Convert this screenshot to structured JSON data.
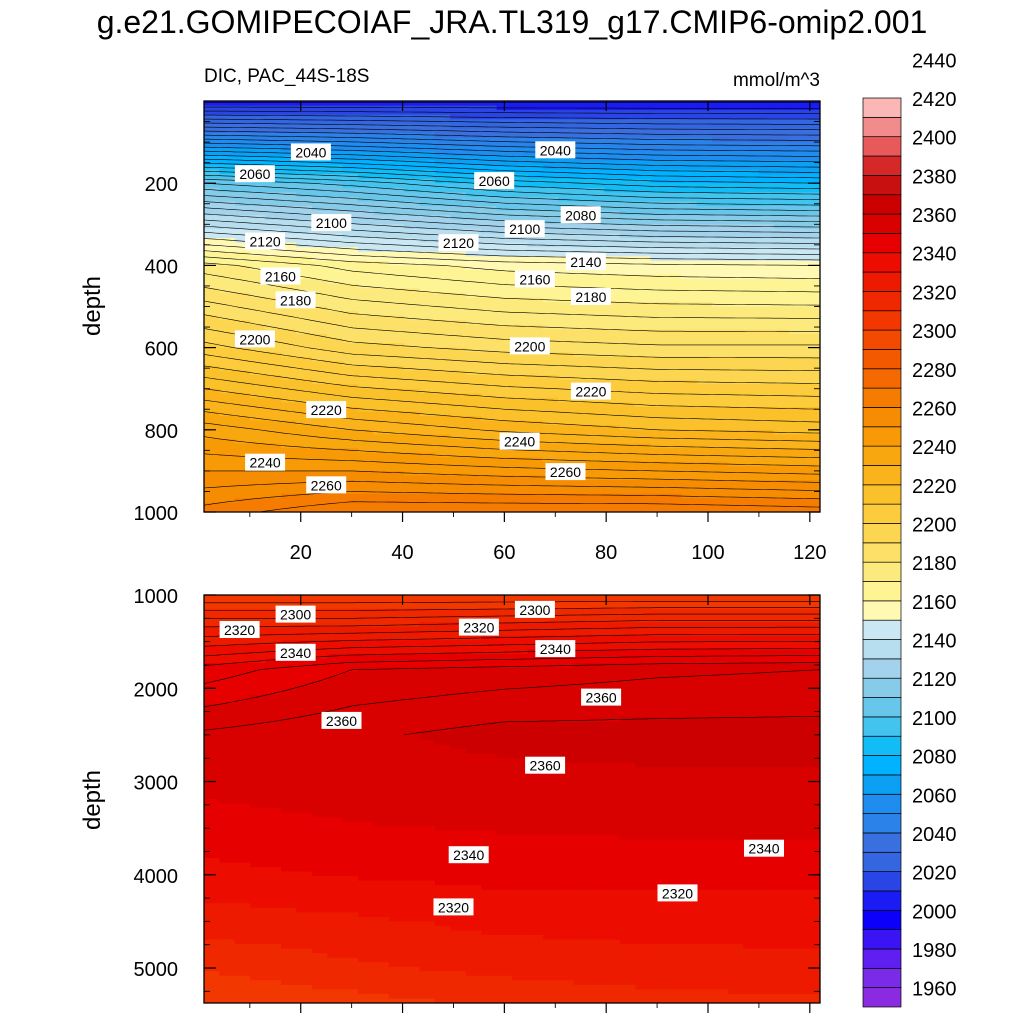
{
  "title": "g.e21.GOMIPECOIAF_JRA.TL319_g17.CMIP6-omip2.001",
  "chart_data": [
    {
      "type": "heatmap",
      "panel": "upper",
      "title_left": "DIC, PAC_44S-18S",
      "title_right": "mmol/m^3",
      "ylabel": "depth",
      "xlabel": "",
      "xlim": [
        1,
        122
      ],
      "ylim": [
        1000,
        0
      ],
      "x_ticks": [
        20,
        40,
        60,
        80,
        100,
        120
      ],
      "y_ticks": [
        200,
        400,
        600,
        800,
        1000
      ],
      "y_rows": [
        5,
        200,
        400,
        600,
        800,
        1000
      ],
      "x_profile": [
        1,
        30,
        60,
        90,
        122
      ],
      "depth_profile": [
        [
          2005,
          2005,
          2005,
          2005,
          2005
        ],
        [
          2105,
          2098,
          2088,
          2082,
          2080
        ],
        [
          2172,
          2163,
          2158,
          2156,
          2155
        ],
        [
          2202,
          2192,
          2188,
          2186,
          2186
        ],
        [
          2238,
          2230,
          2224,
          2220,
          2218
        ],
        [
          2262,
          2270,
          2270,
          2270,
          2268
        ]
      ],
      "contour_labels": [
        {
          "text": "2040",
          "x": 22,
          "y": 125
        },
        {
          "text": "2040",
          "x": 70,
          "y": 120
        },
        {
          "text": "2060",
          "x": 11,
          "y": 178
        },
        {
          "text": "2060",
          "x": 58,
          "y": 195
        },
        {
          "text": "2080",
          "x": 75,
          "y": 278
        },
        {
          "text": "2100",
          "x": 26,
          "y": 297
        },
        {
          "text": "2100",
          "x": 64,
          "y": 312
        },
        {
          "text": "2120",
          "x": 13,
          "y": 342
        },
        {
          "text": "2120",
          "x": 51,
          "y": 346
        },
        {
          "text": "2140",
          "x": 76,
          "y": 392
        },
        {
          "text": "2160",
          "x": 16,
          "y": 427
        },
        {
          "text": "2160",
          "x": 66,
          "y": 434
        },
        {
          "text": "2180",
          "x": 19,
          "y": 485
        },
        {
          "text": "2180",
          "x": 77,
          "y": 477
        },
        {
          "text": "2200",
          "x": 11,
          "y": 580
        },
        {
          "text": "2200",
          "x": 65,
          "y": 597
        },
        {
          "text": "2220",
          "x": 25,
          "y": 752
        },
        {
          "text": "2220",
          "x": 77,
          "y": 707
        },
        {
          "text": "2240",
          "x": 13,
          "y": 880
        },
        {
          "text": "2240",
          "x": 63,
          "y": 829
        },
        {
          "text": "2260",
          "x": 25,
          "y": 935
        },
        {
          "text": "2260",
          "x": 72,
          "y": 903
        }
      ]
    },
    {
      "type": "heatmap",
      "panel": "lower",
      "ylabel": "depth",
      "xlabel": "",
      "xlim": [
        1,
        122
      ],
      "ylim": [
        5375,
        1000
      ],
      "y_ticks": [
        1000,
        2000,
        3000,
        4000,
        5000
      ],
      "y_rows": [
        1000,
        1300,
        1800,
        2500,
        3000,
        3500,
        4000,
        4500,
        5000,
        5375
      ],
      "x_profile": [
        1,
        30,
        60,
        90,
        122
      ],
      "depth_profile": [
        [
          2300,
          2300,
          2300,
          2300,
          2300
        ],
        [
          2318,
          2318,
          2320,
          2322,
          2322
        ],
        [
          2342,
          2350,
          2352,
          2354,
          2355
        ],
        [
          2356,
          2359,
          2362,
          2362,
          2362
        ],
        [
          2353,
          2356,
          2358,
          2359,
          2359
        ],
        [
          2345,
          2349,
          2351,
          2352,
          2352
        ],
        [
          2337,
          2341,
          2343,
          2343,
          2343
        ],
        [
          2325,
          2328,
          2333,
          2334,
          2334
        ],
        [
          2311,
          2318,
          2323,
          2326,
          2327
        ],
        [
          2300,
          2306,
          2312,
          2316,
          2318
        ]
      ],
      "contour_labels": [
        {
          "text": "2300",
          "x": 19,
          "y": 1210
        },
        {
          "text": "2300",
          "x": 66,
          "y": 1160
        },
        {
          "text": "2320",
          "x": 8,
          "y": 1375
        },
        {
          "text": "2320",
          "x": 55,
          "y": 1350
        },
        {
          "text": "2340",
          "x": 19,
          "y": 1620
        },
        {
          "text": "2340",
          "x": 70,
          "y": 1580
        },
        {
          "text": "2360",
          "x": 28,
          "y": 2350
        },
        {
          "text": "2360",
          "x": 79,
          "y": 2100
        },
        {
          "text": "2360",
          "x": 68,
          "y": 2830
        },
        {
          "text": "2340",
          "x": 53,
          "y": 3790
        },
        {
          "text": "2340",
          "x": 111,
          "y": 3720
        },
        {
          "text": "2320",
          "x": 50,
          "y": 4350
        },
        {
          "text": "2320",
          "x": 94,
          "y": 4200
        }
      ]
    }
  ],
  "colorbar": {
    "levels": [
      1960,
      1980,
      2000,
      2020,
      2040,
      2060,
      2080,
      2100,
      2120,
      2140,
      2160,
      2180,
      2200,
      2220,
      2240,
      2260,
      2280,
      2300,
      2320,
      2340,
      2360,
      2380,
      2400,
      2420,
      2440
    ],
    "tick_labels": [
      "1960",
      "1980",
      "2000",
      "2020",
      "2040",
      "2060",
      "2080",
      "2100",
      "2120",
      "2140",
      "2160",
      "2180",
      "2200",
      "2220",
      "2240",
      "2260",
      "2280",
      "2300",
      "2320",
      "2340",
      "2360",
      "2380",
      "2400",
      "2420",
      "2440"
    ],
    "colors": [
      "#8a2be2",
      "#7a2be8",
      "#5f1ff0",
      "#3a14f4",
      "#0c00fa",
      "#1b1bf3",
      "#2a45e6",
      "#3366e0",
      "#3a6fdf",
      "#2b82e8",
      "#1f8cf0",
      "#0ca0f5",
      "#00b2ff",
      "#12bcf5",
      "#42c4ef",
      "#68c6ea",
      "#86cce8",
      "#a3d3ec",
      "#b6deef",
      "#cae7f4",
      "#fff9b3",
      "#fff494",
      "#fdea7d",
      "#fde068",
      "#fcd650",
      "#fccc3c",
      "#fbc12a",
      "#fab31a",
      "#f9a70f",
      "#f89a06",
      "#f68c02",
      "#f57c01",
      "#f46a01",
      "#f35a00",
      "#f24a00",
      "#f23800",
      "#f02800",
      "#ee1a00",
      "#ec0c00",
      "#e60000",
      "#d90000",
      "#cc0000",
      "#c81010",
      "#d62828",
      "#e85a5a",
      "#f28c8c",
      "#fbb6b6"
    ]
  }
}
